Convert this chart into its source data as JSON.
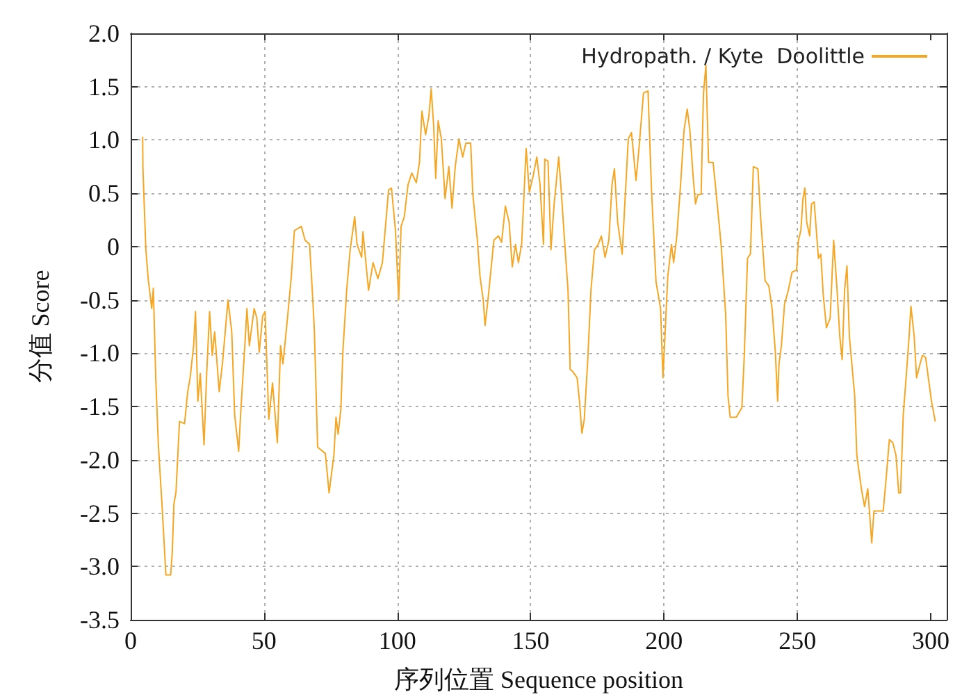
{
  "chart_data": {
    "type": "line",
    "xlabel": "序列位置 Sequence position",
    "ylabel": "分值 Score",
    "xlim": [
      0,
      306
    ],
    "ylim": [
      -3.5,
      2.0
    ],
    "xticks": [
      0,
      50,
      100,
      150,
      200,
      250,
      300
    ],
    "yticks": [
      {
        "value": -3.5,
        "label": "-3.5"
      },
      {
        "value": -3.0,
        "label": "-3.0"
      },
      {
        "value": -2.5,
        "label": "-2.5"
      },
      {
        "value": -2.0,
        "label": "-2.0"
      },
      {
        "value": -1.5,
        "label": "-1.5"
      },
      {
        "value": -1.0,
        "label": "-1.0"
      },
      {
        "value": -0.5,
        "label": "-0.5"
      },
      0,
      0.5,
      {
        "value": 1.0,
        "label": "1.0"
      },
      1.5,
      {
        "value": 2.0,
        "label": "2.0"
      }
    ],
    "grid": true,
    "legend": "top right",
    "marker": "none",
    "line_style": "solid",
    "series": [
      {
        "name": "Hydropath. / Kyte  Doolittle",
        "color": "#f5a623",
        "x": [
          4.5,
          4.6,
          5.7,
          6.6,
          7.9,
          8.5,
          9.4,
          10.4,
          11.8,
          13.2,
          15,
          15.6,
          16.2,
          17,
          18.3,
          20.2,
          21.4,
          22.3,
          23.6,
          24.3,
          25.2,
          26.1,
          27.5,
          28.5,
          29.6,
          30.6,
          31.5,
          33.2,
          34.4,
          36.5,
          37.9,
          39,
          40.5,
          41.3,
          42.8,
          43.6,
          44.5,
          46.3,
          47.3,
          48.2,
          49.5,
          50.4,
          51.8,
          53.2,
          55,
          56.2,
          57.1,
          58.8,
          60.2,
          61.4,
          64,
          65.4,
          67.1,
          68.3,
          68.9,
          70.1,
          73,
          74.4,
          76.2,
          77,
          77.8,
          78.8,
          79.6,
          81,
          82.3,
          84,
          84.9,
          86.6,
          87.1,
          89.2,
          90.9,
          92.7,
          94.4,
          96.7,
          97.8,
          99.3,
          100.5,
          101.4,
          102.6,
          104,
          105.4,
          107.1,
          108.3,
          109.2,
          110.6,
          111.8,
          112.7,
          113.6,
          114.4,
          115.3,
          116.5,
          117.9,
          119.3,
          120.5,
          121.7,
          123.1,
          124.5,
          125.7,
          127.5,
          128.3,
          130,
          131,
          132.2,
          132.9,
          134.1,
          136.2,
          137.9,
          139.1,
          140.5,
          141.9,
          143.1,
          144.3,
          145.4,
          146.6,
          147.5,
          148.3,
          149.5,
          150.9,
          152.3,
          153.5,
          154.8,
          155.3,
          156.5,
          157.6,
          158.8,
          160.5,
          161.4,
          162.8,
          164,
          164.8,
          165.7,
          167.4,
          168.3,
          169.2,
          170.1,
          171.4,
          172.6,
          173.9,
          175.3,
          176.5,
          177.9,
          179.3,
          180.5,
          181.4,
          182.6,
          184.3,
          185.4,
          186.6,
          187.8,
          189.5,
          190.6,
          192.3,
          194,
          195.3,
          197,
          198.7,
          199.6,
          200.5,
          201.4,
          202.8,
          203.6,
          204.8,
          206.2,
          207.5,
          208.7,
          209.7,
          210.9,
          211.8,
          212.7,
          213.9,
          214.8,
          215.7,
          216.7,
          218.4,
          219.6,
          221.4,
          223.1,
          224,
          224.8,
          227.1,
          229.2,
          230.1,
          231.3,
          232.4,
          233.5,
          235.2,
          236.2,
          237.9,
          239.3,
          240.5,
          241.7,
          242.6,
          243.1,
          244,
          245.2,
          246.6,
          248,
          249.7,
          250.4,
          251.3,
          252.1,
          252.8,
          253.5,
          254.6,
          255.3,
          256.3,
          257,
          257.9,
          258.8,
          259.7,
          260.9,
          262.3,
          263.6,
          264.9,
          265.9,
          266.8,
          267.7,
          268.6,
          269.5,
          271.5,
          272.3,
          274,
          275.2,
          276.4,
          277.9,
          278.7,
          280.4,
          282.2,
          283.4,
          284.5,
          285.8,
          287,
          288,
          288.7,
          289.7,
          290.9,
          291.9,
          292.6,
          293.8,
          294.7,
          296,
          296.9,
          298.1,
          298.9,
          300.3,
          301.7
        ],
        "values": [
          1.03,
          0.73,
          -0.03,
          -0.31,
          -0.58,
          -0.39,
          -1.23,
          -1.87,
          -2.44,
          -3.08,
          -3.08,
          -2.87,
          -2.42,
          -2.3,
          -1.64,
          -1.66,
          -1.36,
          -1.23,
          -0.93,
          -0.61,
          -1.45,
          -1.19,
          -1.86,
          -1.19,
          -0.61,
          -1.02,
          -0.8,
          -1.36,
          -1.1,
          -0.5,
          -0.8,
          -1.58,
          -1.92,
          -1.54,
          -0.93,
          -0.58,
          -0.93,
          -0.58,
          -0.67,
          -0.99,
          -0.65,
          -0.61,
          -1.62,
          -1.28,
          -1.84,
          -0.93,
          -1.1,
          -0.67,
          -0.29,
          0.15,
          0.19,
          0.06,
          0.02,
          -0.5,
          -0.8,
          -1.88,
          -1.94,
          -2.31,
          -1.96,
          -1.6,
          -1.76,
          -1.53,
          -0.97,
          -0.41,
          -0.03,
          0.28,
          0.02,
          -0.1,
          0.14,
          -0.41,
          -0.15,
          -0.3,
          -0.15,
          0.53,
          0.55,
          0.15,
          -0.5,
          0.19,
          0.28,
          0.58,
          0.69,
          0.6,
          0.79,
          1.27,
          1.05,
          1.22,
          1.48,
          1.14,
          0.64,
          1.18,
          1.01,
          0.45,
          0.75,
          0.36,
          0.75,
          1.01,
          0.84,
          0.97,
          0.97,
          0.49,
          0.06,
          -0.28,
          -0.5,
          -0.74,
          -0.47,
          0.06,
          0.1,
          0.04,
          0.38,
          0.23,
          -0.19,
          0.02,
          -0.15,
          0.02,
          0.49,
          0.92,
          0.51,
          0.66,
          0.84,
          0.58,
          0.02,
          0.82,
          0.8,
          -0.03,
          0.4,
          0.84,
          0.54,
          0.02,
          -0.41,
          -1.15,
          -1.17,
          -1.23,
          -1.45,
          -1.75,
          -1.62,
          -1.06,
          -0.41,
          -0.03,
          0.02,
          0.1,
          -0.1,
          0.06,
          0.58,
          0.73,
          0.23,
          -0.07,
          0.45,
          1.01,
          1.07,
          0.62,
          0.92,
          1.44,
          1.46,
          0.53,
          -0.33,
          -0.58,
          -1.23,
          -0.76,
          -0.28,
          0.02,
          -0.15,
          0.1,
          0.58,
          1.09,
          1.29,
          1.09,
          0.66,
          0.4,
          0.49,
          0.49,
          1.44,
          1.7,
          0.79,
          0.79,
          0.49,
          0.02,
          -0.63,
          -1.4,
          -1.6,
          -1.6,
          -1.51,
          -1.02,
          -0.11,
          -0.07,
          0.75,
          0.73,
          0.28,
          -0.32,
          -0.37,
          -0.58,
          -0.97,
          -1.45,
          -1.1,
          -0.93,
          -0.54,
          -0.41,
          -0.24,
          -0.22,
          0.06,
          0.15,
          0.45,
          0.55,
          0.23,
          0.1,
          0.4,
          0.42,
          0.19,
          -0.11,
          -0.07,
          -0.45,
          -0.76,
          -0.67,
          0.06,
          -0.41,
          -0.84,
          -1.06,
          -0.41,
          -0.18,
          -0.84,
          -1.4,
          -1.96,
          -2.27,
          -2.44,
          -2.27,
          -2.78,
          -2.48,
          -2.48,
          -2.48,
          -2.14,
          -1.81,
          -1.84,
          -1.96,
          -2.31,
          -2.31,
          -1.58,
          -1.19,
          -0.84,
          -0.56,
          -0.84,
          -1.23,
          -1.1,
          -1.02,
          -1.04,
          -1.19,
          -1.45,
          -1.64
        ]
      }
    ]
  }
}
